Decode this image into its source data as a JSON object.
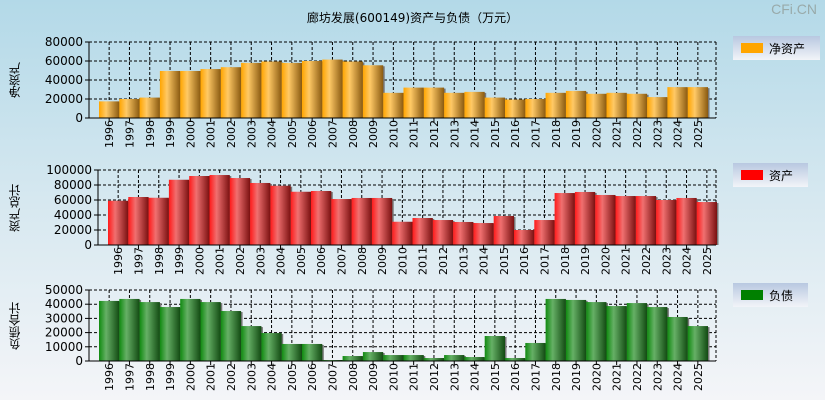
{
  "title": "廊坊发展(600149)资产与负债（万元）",
  "watermark": "CFi.CN",
  "chart_data": [
    {
      "type": "bar",
      "ylabel": "净资产",
      "legend": "净资产",
      "color": "#ffa500",
      "ylim": [
        0,
        80000
      ],
      "yticks": [
        0,
        20000,
        40000,
        60000,
        80000
      ],
      "categories": [
        "1996",
        "1997",
        "1998",
        "1999",
        "2000",
        "2001",
        "2002",
        "2003",
        "2004",
        "2005",
        "2006",
        "2007",
        "2008",
        "2009",
        "2010",
        "2011",
        "2012",
        "2013",
        "2014",
        "2015",
        "2016",
        "2017",
        "2018",
        "2019",
        "2020",
        "2021",
        "2022",
        "2023",
        "2024",
        "2025"
      ],
      "values": [
        17500,
        20000,
        21500,
        49500,
        49500,
        51500,
        53500,
        58000,
        59500,
        58000,
        60000,
        61500,
        59500,
        55500,
        26500,
        32000,
        32000,
        26500,
        27500,
        21500,
        19500,
        20000,
        26500,
        28500,
        25500,
        26500,
        25500,
        22000,
        32500,
        32500
      ]
    },
    {
      "type": "bar",
      "ylabel": "资产总计",
      "legend": "资产",
      "color": "#ff0000",
      "ylim": [
        0,
        100000
      ],
      "yticks": [
        0,
        20000,
        40000,
        60000,
        80000,
        100000
      ],
      "categories": [
        "1996",
        "1997",
        "1998",
        "1999",
        "2000",
        "2001",
        "2002",
        "2003",
        "2004",
        "2005",
        "2006",
        "2007",
        "2008",
        "2009",
        "2010",
        "2011",
        "2012",
        "2013",
        "2014",
        "2015",
        "2016",
        "2017",
        "2018",
        "2019",
        "2020",
        "2021",
        "2022",
        "2023",
        "2024",
        "2025"
      ],
      "values": [
        59000,
        64000,
        63000,
        87000,
        92000,
        93300,
        89300,
        82700,
        79000,
        71000,
        72000,
        61300,
        62700,
        62700,
        31000,
        36000,
        33300,
        30700,
        29300,
        38700,
        20000,
        33300,
        69300,
        70700,
        66700,
        65300,
        65300,
        60000,
        62700,
        57300
      ]
    },
    {
      "type": "bar",
      "ylabel": "负债合计",
      "legend": "负债",
      "color": "#008000",
      "ylim": [
        0,
        50000
      ],
      "yticks": [
        0,
        10000,
        20000,
        30000,
        40000,
        50000
      ],
      "categories": [
        "1996",
        "1997",
        "1998",
        "1999",
        "2000",
        "2001",
        "2002",
        "2003",
        "2004",
        "2005",
        "2006",
        "2007",
        "2008",
        "2009",
        "2010",
        "2011",
        "2012",
        "2013",
        "2014",
        "2015",
        "2016",
        "2017",
        "2018",
        "2019",
        "2020",
        "2021",
        "2022",
        "2023",
        "2024",
        "2025"
      ],
      "values": [
        42300,
        43700,
        41500,
        38000,
        43700,
        41500,
        35200,
        24600,
        19700,
        12000,
        12000,
        700,
        3500,
        6300,
        4200,
        4200,
        2100,
        4200,
        2800,
        17600,
        2100,
        12700,
        43700,
        43000,
        41500,
        38700,
        40800,
        38000,
        31000,
        24600
      ]
    }
  ]
}
